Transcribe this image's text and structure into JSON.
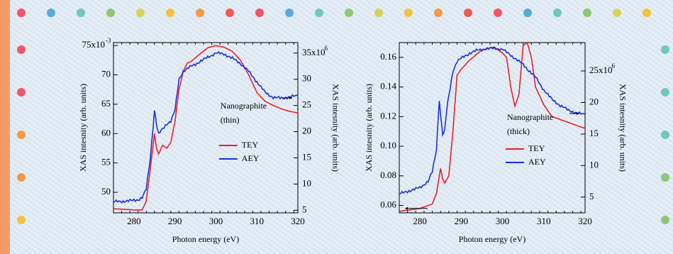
{
  "colors": {
    "tey": "#e8202a",
    "aey": "#1c2fe0",
    "accent_bar": "#f59a6a",
    "dot_palette": [
      "#f0556a",
      "#5aa8dd",
      "#6fc7c0",
      "#8bc878",
      "#d6d35a",
      "#f2c240",
      "#f09a4a",
      "#ee5a5a"
    ]
  },
  "chart_data": [
    {
      "type": "line",
      "xlabel": "Photon energy (eV)",
      "ylabel": "XAS intesnity (arb. units)",
      "y2label": "XAS intesnity (arb. units)",
      "xlim": [
        275,
        320
      ],
      "ylim": [
        46.5,
        75.5
      ],
      "y2lim": [
        4.5,
        37.0
      ],
      "x_ticks": [
        280,
        290,
        300,
        310,
        320
      ],
      "y_ticks": [
        {
          "value": 50,
          "label": "50"
        },
        {
          "value": 55,
          "label": "55"
        },
        {
          "value": 60,
          "label": "60"
        },
        {
          "value": 65,
          "label": "65"
        },
        {
          "value": 70,
          "label": "70"
        },
        {
          "value": 75,
          "label": "75x10"
        }
      ],
      "y_tick_exponent": "-3",
      "y2_ticks": [
        {
          "value": 5,
          "label": "5"
        },
        {
          "value": 10,
          "label": "10"
        },
        {
          "value": 15,
          "label": "15"
        },
        {
          "value": 20,
          "label": "20"
        },
        {
          "value": 25,
          "label": "25"
        },
        {
          "value": 30,
          "label": "30"
        },
        {
          "value": 35,
          "label": "35x10"
        }
      ],
      "y2_tick_exponent": "6",
      "annotation_lines": [
        "Nanographite",
        "(thin)"
      ],
      "series": [
        {
          "name": "TEY",
          "axis": "left",
          "x": [
            275,
            280,
            282,
            283,
            284,
            285,
            285.5,
            286,
            287,
            288,
            289,
            290,
            291,
            292,
            293,
            294,
            296,
            298,
            300,
            302,
            304,
            306,
            308,
            310,
            312,
            314,
            316,
            318,
            320
          ],
          "y": [
            47.2,
            47.0,
            47.0,
            48.5,
            54.0,
            60.0,
            57.5,
            56.5,
            58.0,
            57.5,
            58.5,
            62.0,
            67.5,
            70.5,
            72.0,
            72.3,
            73.5,
            74.6,
            75.0,
            74.7,
            74.0,
            72.5,
            70.0,
            67.0,
            65.5,
            64.8,
            64.2,
            63.8,
            63.5
          ]
        },
        {
          "name": "AEY",
          "axis": "right",
          "x": [
            275,
            279,
            281,
            282,
            283,
            284,
            285,
            285.5,
            286,
            287,
            288,
            289,
            290,
            291,
            292,
            293,
            294,
            296,
            298,
            300,
            302,
            304,
            306,
            308,
            310,
            312,
            314,
            316,
            318,
            320
          ],
          "y": [
            6.6,
            6.8,
            7.0,
            7.4,
            9.0,
            15.0,
            24.0,
            21.5,
            19.5,
            20.5,
            21.5,
            22.0,
            24.0,
            30.0,
            31.5,
            32.0,
            32.5,
            33.3,
            34.2,
            35.0,
            34.8,
            34.0,
            33.0,
            31.5,
            29.5,
            27.5,
            26.5,
            26.4,
            26.6,
            26.9
          ]
        }
      ]
    },
    {
      "type": "line",
      "xlabel": "Photon energy (eV)",
      "ylabel": "XAS intesnity (arb. units)",
      "y2label": "XAS intesnity (arb. units)",
      "xlim": [
        275,
        320
      ],
      "ylim": [
        0.055,
        0.17
      ],
      "y2lim": [
        2.5,
        29.5
      ],
      "x_ticks": [
        280,
        290,
        300,
        310,
        320
      ],
      "y_ticks": [
        {
          "value": 0.06,
          "label": "0.06"
        },
        {
          "value": 0.08,
          "label": "0.08"
        },
        {
          "value": 0.1,
          "label": "0.10"
        },
        {
          "value": 0.12,
          "label": "0.12"
        },
        {
          "value": 0.14,
          "label": "0.14"
        },
        {
          "value": 0.16,
          "label": "0.16"
        }
      ],
      "y2_ticks": [
        {
          "value": 5,
          "label": "5"
        },
        {
          "value": 10,
          "label": "10"
        },
        {
          "value": 15,
          "label": "15"
        },
        {
          "value": 20,
          "label": "20"
        },
        {
          "value": 25,
          "label": "25x10"
        }
      ],
      "y2_tick_exponent": "6",
      "annotation_lines": [
        "Nanographite",
        "(thick)"
      ],
      "series": [
        {
          "name": "TEY",
          "axis": "left",
          "x": [
            275,
            280,
            283,
            284,
            285,
            285.5,
            286,
            287,
            288,
            289,
            290,
            292,
            295,
            298,
            300,
            301,
            302,
            303,
            304,
            305,
            306,
            307,
            308,
            310,
            312,
            315,
            318,
            320
          ],
          "y": [
            0.056,
            0.058,
            0.061,
            0.068,
            0.085,
            0.078,
            0.075,
            0.08,
            0.11,
            0.148,
            0.152,
            0.158,
            0.165,
            0.167,
            0.163,
            0.16,
            0.14,
            0.127,
            0.135,
            0.168,
            0.17,
            0.16,
            0.14,
            0.128,
            0.12,
            0.117,
            0.114,
            0.112
          ]
        },
        {
          "name": "AEY",
          "axis": "right",
          "x": [
            275,
            280,
            282,
            283,
            284,
            284.7,
            285,
            285.5,
            286,
            286.5,
            287,
            288,
            289,
            290,
            292,
            294,
            296,
            298,
            300,
            302,
            305,
            308,
            310,
            312,
            314,
            316,
            318,
            320
          ],
          "y": [
            5.5,
            6.5,
            7.5,
            9.0,
            12.5,
            20.5,
            18.0,
            15.0,
            15.5,
            19.0,
            21.0,
            25.0,
            26.5,
            27.0,
            27.8,
            28.3,
            28.5,
            28.6,
            28.4,
            27.5,
            26.0,
            24.0,
            22.0,
            20.5,
            19.5,
            18.8,
            18.3,
            18.1
          ]
        }
      ]
    }
  ]
}
